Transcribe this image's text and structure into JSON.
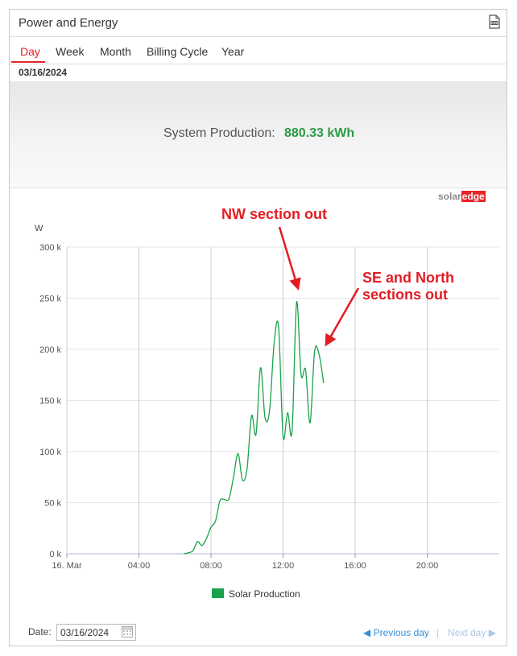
{
  "header": {
    "title": "Power and Energy",
    "csv_icon": "csv-file-icon"
  },
  "tabs": [
    {
      "label": "Day",
      "active": true
    },
    {
      "label": "Week",
      "active": false
    },
    {
      "label": "Month",
      "active": false
    },
    {
      "label": "Billing Cycle",
      "active": false
    },
    {
      "label": "Year",
      "active": false
    }
  ],
  "selected_date": "03/16/2024",
  "summary": {
    "label": "System Production:",
    "value": "880.33 kWh",
    "value_color": "#2d9a46"
  },
  "logo": {
    "part1": "solar",
    "part2": "edge"
  },
  "annotations": {
    "nw": "NW section out",
    "se_line1": "SE and North",
    "se_line2": "sections out",
    "color": "#e31c23"
  },
  "footer": {
    "date_label": "Date:",
    "date_value": "03/16/2024",
    "prev_label": "Previous day",
    "separator": "|",
    "next_label": "Next day"
  },
  "chart_data": {
    "type": "line",
    "ylabel": "W",
    "ylim": [
      0,
      300000
    ],
    "xlim_hours": [
      0,
      24
    ],
    "y_ticks": [
      0,
      50000,
      100000,
      150000,
      200000,
      250000,
      300000
    ],
    "y_tick_labels": [
      "0 k",
      "50 k",
      "100 k",
      "150 k",
      "200 k",
      "250 k",
      "300 k"
    ],
    "x_ticks_hours": [
      0,
      4,
      8,
      12,
      16,
      20
    ],
    "x_tick_labels": [
      "16. Mar",
      "04:00",
      "08:00",
      "12:00",
      "16:00",
      "20:00"
    ],
    "grid": true,
    "series": [
      {
        "name": "Solar Production",
        "color": "#1aa34a",
        "x_hours": [
          6.5,
          6.75,
          7.0,
          7.25,
          7.5,
          7.75,
          8.0,
          8.25,
          8.5,
          8.75,
          9.0,
          9.25,
          9.5,
          9.75,
          10.0,
          10.25,
          10.5,
          10.75,
          11.0,
          11.25,
          11.5,
          11.75,
          12.0,
          12.25,
          12.5,
          12.75,
          13.0,
          13.25,
          13.5,
          13.75,
          14.0,
          14.25
        ],
        "y_watts": [
          0,
          1000,
          3000,
          12000,
          8000,
          15000,
          26000,
          32000,
          52000,
          53000,
          54000,
          75000,
          98000,
          72000,
          83000,
          135000,
          117000,
          182000,
          133000,
          140000,
          205000,
          222000,
          115000,
          138000,
          120000,
          246000,
          175000,
          180000,
          128000,
          198000,
          195000,
          167000
        ]
      }
    ]
  }
}
